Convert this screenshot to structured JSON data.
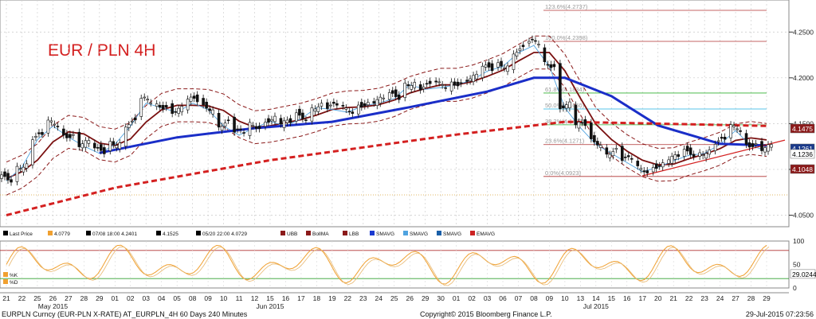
{
  "title": "EUR / PLN 4H",
  "legend_items": [
    {
      "icon": "candle-icon",
      "label": "Last Price",
      "color": "#000000"
    },
    {
      "icon": "square-icon",
      "label": "4.0779",
      "color": "#f0a030"
    },
    {
      "icon": "tick-icon",
      "label": "07/08 18:00 4.2401",
      "color": "#000000"
    },
    {
      "icon": "plus-icon",
      "label": "4.1525",
      "color": "#000000"
    },
    {
      "icon": "clock-icon",
      "label": "05/20 22:00 4.0729",
      "color": "#000000"
    },
    {
      "icon": "bb-upper-icon",
      "label": "UBB",
      "color": "#8b1a1a"
    },
    {
      "icon": "square-icon",
      "label": "BollMA",
      "color": "#8b1a1a"
    },
    {
      "icon": "bb-lower-icon",
      "label": "LBB",
      "color": "#8b1a1a"
    },
    {
      "icon": "square-icon",
      "label": "SMAVG",
      "color": "#1a3ad0"
    },
    {
      "icon": "square-icon",
      "label": "SMAVG",
      "color": "#4fa3e0"
    },
    {
      "icon": "square-icon",
      "label": "SMAVG",
      "color": "#1a5fa8"
    },
    {
      "icon": "ema-icon",
      "label": "EMAVG",
      "color": "#cc2222"
    }
  ],
  "price_axis_ticks": [
    "4.2500",
    "4.2000",
    "4.1500",
    "4.1000",
    "4.0500"
  ],
  "price_tags": [
    {
      "value": "4.1475",
      "bg": "#8b1a1a",
      "fg": "#ffffff"
    },
    {
      "value": "4.1261",
      "bg": "#1a3a8a",
      "fg": "#ffffff"
    },
    {
      "value": "4.1236",
      "bg": "#ffffff",
      "fg": "#000000"
    },
    {
      "value": "4.1048",
      "bg": "#8b1a1a",
      "fg": "#ffffff"
    }
  ],
  "fib_levels": [
    {
      "text": "123.6%(4.2737)",
      "value": 4.2737
    },
    {
      "text": "100.0%(4.2398)",
      "value": 4.2398
    },
    {
      "text": "61.8%(4.1834)",
      "value": 4.1834
    },
    {
      "text": "50.0%(4.1660)",
      "value": 4.166
    },
    {
      "text": "38.2%(4.1487)",
      "value": 4.1487
    },
    {
      "text": "23.6%(4.1271)",
      "value": 4.1271
    },
    {
      "text": "0.0%(4.0923)",
      "value": 4.0923
    }
  ],
  "osc_axis_ticks": [
    "100",
    "50",
    "0"
  ],
  "osc_value_tag": "29.0244",
  "osc_legend": [
    {
      "label": "%K",
      "color": "#f0a030"
    },
    {
      "label": "%D",
      "color": "#f0a030"
    }
  ],
  "date_ticks": [
    "21",
    "22",
    "25",
    "26",
    "27",
    "28",
    "29",
    "01",
    "02",
    "03",
    "04",
    "05",
    "08",
    "09",
    "10",
    "11",
    "12",
    "15",
    "16",
    "17",
    "18",
    "19",
    "22",
    "23",
    "24",
    "25",
    "26",
    "29",
    "30",
    "01",
    "02",
    "03",
    "06",
    "07",
    "08",
    "09",
    "10",
    "13",
    "14",
    "15",
    "16",
    "17",
    "20",
    "21",
    "22",
    "23",
    "24",
    "27",
    "28",
    "29"
  ],
  "month_labels": [
    "May 2015",
    "Jun 2015",
    "Jul 2015"
  ],
  "footer": {
    "left": "EURPLN Curncy (EUR-PLN X-RATE) AT_EURPLN_4H 60 Days 240 Minutes",
    "center": "Copyright© 2015 Bloomberg Finance L.P.",
    "right": "29-Jul-2015 07:23:56"
  },
  "colors": {
    "sma_blue": "#1a2ec8",
    "boll_ma": "#7a1010",
    "band": "#8b1a1a",
    "ema": "#d42020",
    "fib": "#b03030"
  },
  "chart_data": {
    "type": "candlestick",
    "title": "EUR / PLN 4H",
    "ylim": [
      4.04,
      4.285
    ],
    "close_series": [
      {
        "date": "05-21",
        "close": 4.09
      },
      {
        "date": "05-22",
        "close": 4.105
      },
      {
        "date": "05-25",
        "close": 4.135
      },
      {
        "date": "05-26",
        "close": 4.15
      },
      {
        "date": "05-27",
        "close": 4.138
      },
      {
        "date": "05-28",
        "close": 4.128
      },
      {
        "date": "05-29",
        "close": 4.12
      },
      {
        "date": "06-01",
        "close": 4.13
      },
      {
        "date": "06-02",
        "close": 4.15
      },
      {
        "date": "06-03",
        "close": 4.175
      },
      {
        "date": "06-04",
        "close": 4.17
      },
      {
        "date": "06-05",
        "close": 4.165
      },
      {
        "date": "06-08",
        "close": 4.175
      },
      {
        "date": "06-09",
        "close": 4.168
      },
      {
        "date": "06-10",
        "close": 4.15
      },
      {
        "date": "06-11",
        "close": 4.14
      },
      {
        "date": "06-12",
        "close": 4.148
      },
      {
        "date": "06-15",
        "close": 4.155
      },
      {
        "date": "06-16",
        "close": 4.15
      },
      {
        "date": "06-17",
        "close": 4.158
      },
      {
        "date": "06-18",
        "close": 4.17
      },
      {
        "date": "06-19",
        "close": 4.168
      },
      {
        "date": "06-22",
        "close": 4.165
      },
      {
        "date": "06-23",
        "close": 4.172
      },
      {
        "date": "06-24",
        "close": 4.175
      },
      {
        "date": "06-25",
        "close": 4.18
      },
      {
        "date": "06-26",
        "close": 4.195
      },
      {
        "date": "06-29",
        "close": 4.19
      },
      {
        "date": "06-30",
        "close": 4.192
      },
      {
        "date": "07-01",
        "close": 4.195
      },
      {
        "date": "07-02",
        "close": 4.2
      },
      {
        "date": "07-03",
        "close": 4.21
      },
      {
        "date": "07-06",
        "close": 4.215
      },
      {
        "date": "07-07",
        "close": 4.23
      },
      {
        "date": "07-08",
        "close": 4.238
      },
      {
        "date": "07-09",
        "close": 4.215
      },
      {
        "date": "07-10",
        "close": 4.17
      },
      {
        "date": "07-13",
        "close": 4.148
      },
      {
        "date": "07-14",
        "close": 4.13
      },
      {
        "date": "07-15",
        "close": 4.12
      },
      {
        "date": "07-16",
        "close": 4.11
      },
      {
        "date": "07-17",
        "close": 4.1
      },
      {
        "date": "07-20",
        "close": 4.105
      },
      {
        "date": "07-21",
        "close": 4.112
      },
      {
        "date": "07-22",
        "close": 4.118
      },
      {
        "date": "07-23",
        "close": 4.12
      },
      {
        "date": "07-24",
        "close": 4.13
      },
      {
        "date": "07-27",
        "close": 4.145
      },
      {
        "date": "07-28",
        "close": 4.128
      },
      {
        "date": "07-29",
        "close": 4.1236
      }
    ],
    "sma_blue": [
      {
        "date": "05-29",
        "value": 4.118
      },
      {
        "date": "06-05",
        "value": 4.135
      },
      {
        "date": "06-12",
        "value": 4.145
      },
      {
        "date": "06-19",
        "value": 4.152
      },
      {
        "date": "06-26",
        "value": 4.168
      },
      {
        "date": "07-03",
        "value": 4.185
      },
      {
        "date": "07-08",
        "value": 4.2
      },
      {
        "date": "07-10",
        "value": 4.2
      },
      {
        "date": "07-15",
        "value": 4.18
      },
      {
        "date": "07-20",
        "value": 4.148
      },
      {
        "date": "07-24",
        "value": 4.128
      },
      {
        "date": "07-29",
        "value": 4.1261
      }
    ],
    "ema_red": [
      {
        "date": "05-21",
        "value": 4.05
      },
      {
        "date": "06-01",
        "value": 4.08
      },
      {
        "date": "06-15",
        "value": 4.11
      },
      {
        "date": "07-01",
        "value": 4.138
      },
      {
        "date": "07-10",
        "value": 4.152
      },
      {
        "date": "07-20",
        "value": 4.15
      },
      {
        "date": "07-29",
        "value": 4.1475
      }
    ],
    "y_axis_ticks": [
      4.25,
      4.2,
      4.15,
      4.1,
      4.05
    ]
  }
}
